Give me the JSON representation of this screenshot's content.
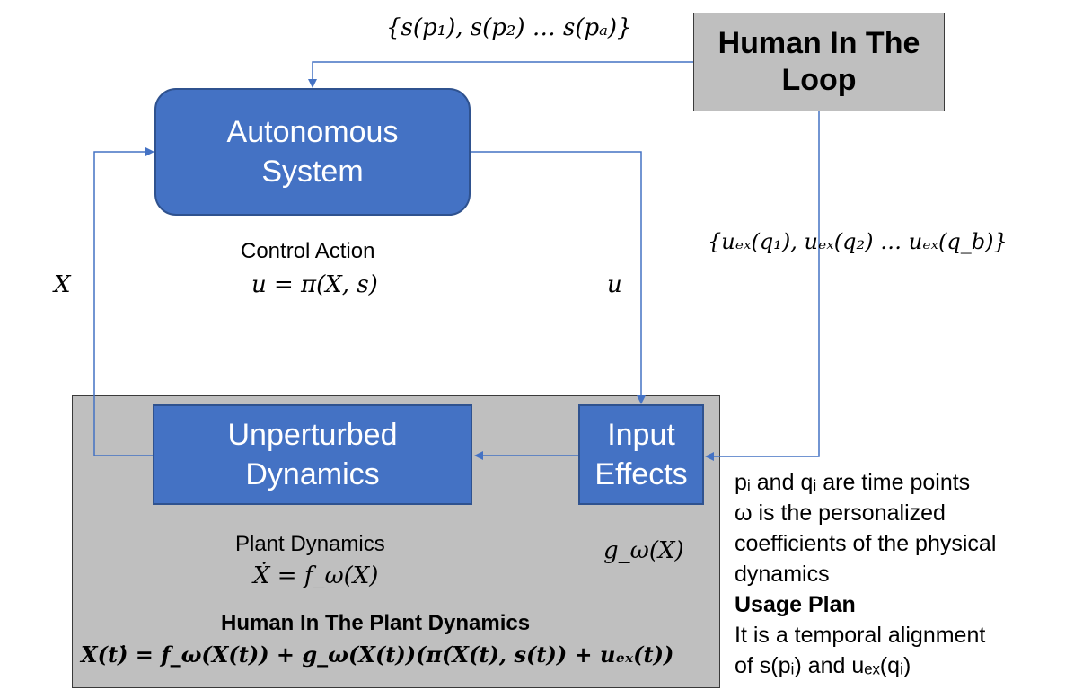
{
  "human_loop": {
    "line1": "Human In The",
    "line2": "Loop"
  },
  "autonomous": {
    "line1": "Autonomous",
    "line2": "System"
  },
  "unperturbed": {
    "line1": "Unperturbed",
    "line2": "Dynamics"
  },
  "input_effects": {
    "line1": "Input",
    "line2": "Effects"
  },
  "labels": {
    "s_set": "{s(p₁), s(p₂) … s(pₐ)}",
    "uex_set": "{uₑₓ(q₁), uₑₓ(q₂) … uₑₓ(q_b)}",
    "x": "X",
    "u": "u",
    "control_action": "Control Action",
    "control_eq": "u = π(X, s)",
    "plant_dynamics": "Plant Dynamics",
    "plant_eq": "Ẋ = f_ω(X)",
    "g_omega": "g_ω(X)",
    "hitp_title": "Human In The Plant Dynamics",
    "hitp_eq": "X(t)̇ = f_ω(X(t)) + g_ω(X(t))(π(X(t), s(t)) + uₑₓ(t))"
  },
  "notes": {
    "line1": "pᵢ and qᵢ are time points",
    "line2": "ω is the personalized",
    "line3": "coefficients of the physical",
    "line4": "dynamics",
    "usage_title": "Usage Plan",
    "line5": "It is a temporal alignment",
    "line6": "of s(pᵢ) and uₑₓ(qᵢ)"
  },
  "colors": {
    "box_blue": "#4472c4",
    "box_blue_border": "#2f528f",
    "gray_fill": "#bfbfbf",
    "gray_border": "#3a3a3a",
    "arrow": "#4472c4"
  }
}
